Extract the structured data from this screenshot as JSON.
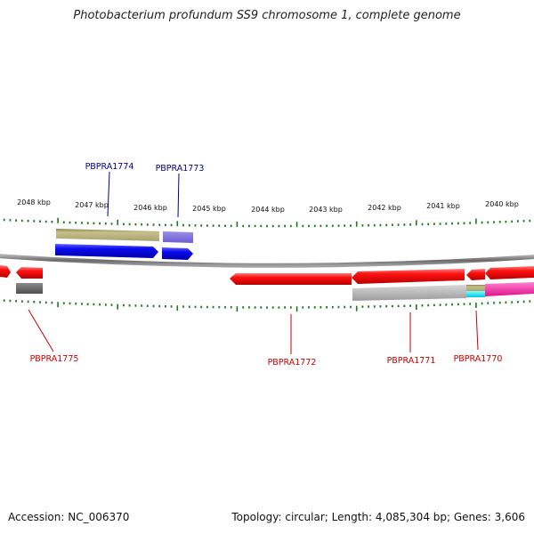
{
  "title": "Photobacterium profundum SS9 chromosome 1, complete genome",
  "footer": {
    "accession": "Accession: NC_006370",
    "summary": "Topology: circular; Length: 4,085,304 bp; Genes: 3,606"
  },
  "ticks": [
    "2048 kbp",
    "2047 kbp",
    "2046 kbp",
    "2045 kbp",
    "2044 kbp",
    "2043 kbp",
    "2042 kbp",
    "2041 kbp",
    "2040 kbp"
  ],
  "labels": [
    "PBPRA1774",
    "PBPRA1773",
    "PBPRA1775",
    "PBPRA1772",
    "PBPRA1771",
    "PBPRA1770"
  ],
  "colors": {
    "forward": "#0000ee",
    "reverse": "#ee0000",
    "forward_label": "#00008b",
    "reverse_label": "#cc0000",
    "tick": "#1a7a1a",
    "backbone": "#808080"
  }
}
